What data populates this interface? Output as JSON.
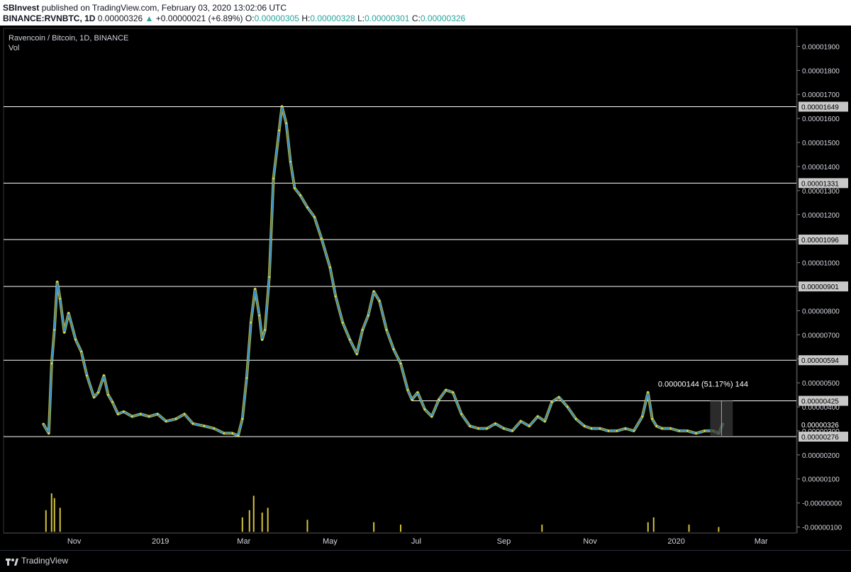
{
  "header": {
    "publisher": "SBInvest",
    "published_text": "published on TradingView.com, February 03, 2020 13:02:06 UTC",
    "symbol": "BINANCE:RVNBTC, 1D",
    "last": "0.00000326",
    "up_arrow": "▲",
    "change": "+0.00000021 (+6.89%)",
    "o_label": "O:",
    "o": "0.00000305",
    "h_label": "H:",
    "h": "0.00000328",
    "l_label": "L:",
    "l": "0.00000301",
    "c_label": "C:",
    "c": "0.00000326"
  },
  "legend": {
    "title": "Ravencoin / Bitcoin, 1D, BINANCE",
    "vol": "Vol"
  },
  "footer": {
    "brand": "TradingView"
  },
  "colors": {
    "background": "#000000",
    "price_line": "#2f8fd6",
    "up_candle": "#f5e63c",
    "level_line": "#ffffff",
    "volume": "#d4c33a",
    "measure_box": "#3a3a3a"
  },
  "chart_data": {
    "type": "line",
    "title": "Ravencoin / Bitcoin, 1D, BINANCE",
    "y_axis_side": "right",
    "ylim": [
      -1.25e-06,
      1.975e-05
    ],
    "y_ticks": [
      "0.00001900",
      "0.00001800",
      "0.00001700",
      "0.00001600",
      "0.00001500",
      "0.00001400",
      "0.00001300",
      "0.00001200",
      "0.00001100",
      "0.00001000",
      "0.00000900",
      "0.00000800",
      "0.00000700",
      "0.00000600",
      "0.00000500",
      "0.00000400",
      "0.00000300",
      "0.00000200",
      "0.00000100",
      "-0.00000000",
      "-0.00000100"
    ],
    "y_tick_values": [
      1.9e-05,
      1.8e-05,
      1.7e-05,
      1.6e-05,
      1.5e-05,
      1.4e-05,
      1.3e-05,
      1.2e-05,
      1.1e-05,
      1e-05,
      9e-06,
      8e-06,
      7e-06,
      6e-06,
      5e-06,
      4e-06,
      3e-06,
      2e-06,
      1e-06,
      0,
      -1e-06
    ],
    "x_ticks": [
      "Nov",
      "2019",
      "Mar",
      "May",
      "Jul",
      "Sep",
      "Nov",
      "2020",
      "Mar"
    ],
    "x_tick_dates": [
      "2018-11-01",
      "2019-01-01",
      "2019-03-01",
      "2019-05-01",
      "2019-07-01",
      "2019-09-01",
      "2019-11-01",
      "2020-01-01",
      "2020-03-01"
    ],
    "x_range": [
      "2018-09-12",
      "2020-03-26"
    ],
    "series": [
      {
        "x": [
          "2018-10-10",
          "2018-10-14",
          "2018-10-16",
          "2018-10-18",
          "2018-10-20",
          "2018-10-22",
          "2018-10-25",
          "2018-10-28",
          "2018-11-02",
          "2018-11-06",
          "2018-11-10",
          "2018-11-15",
          "2018-11-18",
          "2018-11-22",
          "2018-11-25",
          "2018-11-28",
          "2018-12-02",
          "2018-12-06",
          "2018-12-12",
          "2018-12-18",
          "2018-12-24",
          "2018-12-30",
          "2019-01-05",
          "2019-01-12",
          "2019-01-18",
          "2019-01-24",
          "2019-02-01",
          "2019-02-08",
          "2019-02-15",
          "2019-02-21",
          "2019-02-25",
          "2019-02-28",
          "2019-03-03",
          "2019-03-06",
          "2019-03-09",
          "2019-03-12",
          "2019-03-14",
          "2019-03-16",
          "2019-03-19",
          "2019-03-22",
          "2019-03-26",
          "2019-03-28",
          "2019-03-31",
          "2019-04-03",
          "2019-04-06",
          "2019-04-10",
          "2019-04-15",
          "2019-04-20",
          "2019-04-25",
          "2019-05-01",
          "2019-05-05",
          "2019-05-10",
          "2019-05-15",
          "2019-05-20",
          "2019-05-24",
          "2019-05-28",
          "2019-06-01",
          "2019-06-05",
          "2019-06-10",
          "2019-06-15",
          "2019-06-20",
          "2019-06-25",
          "2019-06-28",
          "2019-07-02",
          "2019-07-07",
          "2019-07-12",
          "2019-07-17",
          "2019-07-22",
          "2019-07-27",
          "2019-08-02",
          "2019-08-08",
          "2019-08-14",
          "2019-08-20",
          "2019-08-26",
          "2019-09-01",
          "2019-09-07",
          "2019-09-13",
          "2019-09-19",
          "2019-09-25",
          "2019-09-30",
          "2019-10-05",
          "2019-10-10",
          "2019-10-16",
          "2019-10-22",
          "2019-10-28",
          "2019-11-02",
          "2019-11-08",
          "2019-11-14",
          "2019-11-20",
          "2019-11-26",
          "2019-12-02",
          "2019-12-08",
          "2019-12-12",
          "2019-12-15",
          "2019-12-18",
          "2019-12-22",
          "2019-12-28",
          "2020-01-03",
          "2020-01-09",
          "2020-01-15",
          "2020-01-21",
          "2020-01-27",
          "2020-01-31",
          "2020-02-03"
        ],
        "y": [
          3.3e-06,
          2.9e-06,
          5.8e-06,
          7.2e-06,
          9.2e-06,
          8.5e-06,
          7.1e-06,
          7.9e-06,
          6.8e-06,
          6.3e-06,
          5.3e-06,
          4.4e-06,
          4.6e-06,
          5.3e-06,
          4.5e-06,
          4.2e-06,
          3.7e-06,
          3.8e-06,
          3.6e-06,
          3.7e-06,
          3.6e-06,
          3.7e-06,
          3.4e-06,
          3.5e-06,
          3.7e-06,
          3.3e-06,
          3.2e-06,
          3.1e-06,
          2.9e-06,
          2.9e-06,
          2.8e-06,
          3.5e-06,
          5.2e-06,
          7.5e-06,
          8.9e-06,
          7.8e-06,
          6.8e-06,
          7.2e-06,
          9.4e-06,
          1.35e-05,
          1.55e-05,
          1.65e-05,
          1.58e-05,
          1.42e-05,
          1.31e-05,
          1.28e-05,
          1.23e-05,
          1.19e-05,
          1.1e-05,
          9.8e-06,
          8.6e-06,
          7.5e-06,
          6.8e-06,
          6.2e-06,
          7.2e-06,
          7.8e-06,
          8.8e-06,
          8.4e-06,
          7.2e-06,
          6.4e-06,
          5.8e-06,
          4.7e-06,
          4.3e-06,
          4.6e-06,
          3.9e-06,
          3.6e-06,
          4.3e-06,
          4.7e-06,
          4.6e-06,
          3.7e-06,
          3.2e-06,
          3.1e-06,
          3.1e-06,
          3.3e-06,
          3.1e-06,
          3e-06,
          3.4e-06,
          3.2e-06,
          3.6e-06,
          3.4e-06,
          4.2e-06,
          4.4e-06,
          4e-06,
          3.5e-06,
          3.2e-06,
          3.1e-06,
          3.1e-06,
          3e-06,
          3e-06,
          3.1e-06,
          3e-06,
          3.6e-06,
          4.6e-06,
          3.5e-06,
          3.2e-06,
          3.1e-06,
          3.1e-06,
          3e-06,
          3e-06,
          2.9e-06,
          3e-06,
          3e-06,
          2.9e-06,
          3.3e-06
        ]
      }
    ],
    "volume_spikes": {
      "x": [
        "2018-10-12",
        "2018-10-16",
        "2018-10-18",
        "2018-10-22",
        "2019-02-28",
        "2019-03-05",
        "2019-03-08",
        "2019-03-14",
        "2019-03-18",
        "2019-04-15",
        "2019-06-01",
        "2019-06-20",
        "2019-09-28",
        "2019-12-12",
        "2019-12-16",
        "2020-01-10",
        "2020-01-31"
      ],
      "y": [
        9e-07,
        1.6e-06,
        1.4e-06,
        1e-06,
        6e-07,
        9e-07,
        1.5e-06,
        8e-07,
        1e-06,
        5e-07,
        4e-07,
        3e-07,
        3e-07,
        4e-07,
        6e-07,
        3e-07,
        2e-07
      ]
    },
    "horizontal_levels": [
      {
        "value": 1.649e-05,
        "label": "0.00001649",
        "from": "2018-09-12"
      },
      {
        "value": 1.331e-05,
        "label": "0.00001331",
        "from": "2018-09-12"
      },
      {
        "value": 1.096e-05,
        "label": "0.00001096",
        "from": "2018-09-12"
      },
      {
        "value": 9.01e-06,
        "label": "0.00000901",
        "from": "2018-09-12"
      },
      {
        "value": 5.94e-06,
        "label": "0.00000594",
        "from": "2018-09-12"
      },
      {
        "value": 4.25e-06,
        "label": "0.00000425",
        "from": "2019-06-28"
      },
      {
        "value": 2.76e-06,
        "label": "0.00000276",
        "from": "2018-09-12"
      }
    ],
    "current_price_label": "0.00000326",
    "current_price": 3.26e-06,
    "measure": {
      "label": "0.00000144 (51.17%) 144",
      "from_date": "2020-01-25",
      "to_date": "2020-02-10",
      "low": 2.8e-06,
      "high": 4.25e-06
    }
  }
}
